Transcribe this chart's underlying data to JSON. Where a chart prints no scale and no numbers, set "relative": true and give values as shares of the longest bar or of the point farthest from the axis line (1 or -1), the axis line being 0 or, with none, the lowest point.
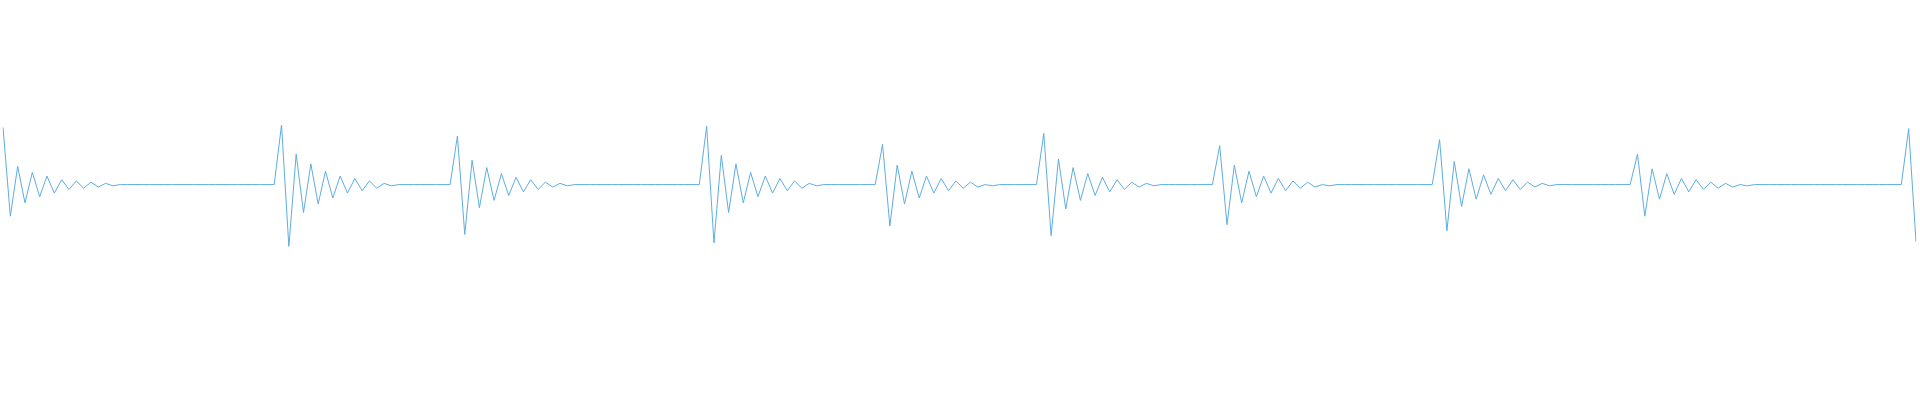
{
  "chart_data": {
    "type": "line",
    "relative": true,
    "categories": [
      null,
      null,
      null,
      null,
      null,
      null,
      null,
      null,
      null,
      null,
      null,
      null,
      null,
      null,
      null,
      null,
      null,
      null,
      null,
      null,
      null,
      null,
      null,
      null,
      null,
      null,
      null,
      null,
      null,
      null,
      null,
      null,
      null,
      null,
      null,
      null,
      null,
      null,
      null,
      null,
      null,
      null,
      null,
      null,
      null,
      null,
      null,
      null,
      null,
      null,
      null,
      null,
      null,
      null,
      null,
      null,
      null,
      null,
      null,
      null,
      null,
      null,
      null,
      null,
      null,
      null,
      null,
      null,
      null,
      null,
      null,
      null,
      null,
      null,
      null,
      null,
      null,
      null,
      null,
      null,
      null,
      null,
      null,
      null,
      null,
      null,
      null,
      null,
      null,
      null,
      null,
      null,
      null,
      null,
      null,
      null,
      null,
      null,
      null,
      null,
      null,
      null,
      null,
      null,
      null,
      null,
      null,
      null,
      null,
      null,
      null,
      null,
      null,
      null,
      null,
      null,
      null,
      null,
      null,
      null,
      null,
      null,
      null,
      null,
      null,
      null,
      null,
      null,
      null,
      null,
      null,
      null,
      null,
      null,
      null,
      null,
      null,
      null,
      null,
      null,
      null,
      null,
      null,
      null,
      null,
      null,
      null,
      null,
      null,
      null,
      null,
      null,
      null,
      null,
      null,
      null,
      null,
      null,
      null,
      null,
      null,
      null,
      null,
      null,
      null,
      null,
      null,
      null,
      null,
      null,
      null,
      null,
      null,
      null,
      null,
      null,
      null,
      null,
      null,
      null,
      null,
      null,
      null,
      null,
      null,
      null,
      null,
      null,
      null,
      null,
      null,
      null,
      null,
      null,
      null,
      null,
      null,
      null,
      null,
      null,
      null,
      null,
      null,
      null,
      null,
      null,
      null,
      null,
      null,
      null,
      null,
      null,
      null,
      null,
      null,
      null,
      null,
      null,
      null,
      null,
      null,
      null,
      null,
      null,
      null,
      null,
      null,
      null,
      null,
      null,
      null,
      null,
      null,
      null,
      null,
      null,
      null,
      null,
      null,
      null,
      null,
      null,
      null,
      null,
      null,
      null,
      null,
      null,
      null,
      null,
      null,
      null,
      null,
      null,
      null,
      null,
      null,
      null,
      null,
      null,
      null,
      null
    ],
    "series": [
      {
        "color": "#5dade2",
        "values": [
          0.98,
          0.25,
          0.66,
          0.36,
          0.61,
          0.41,
          0.58,
          0.44,
          0.55,
          0.47,
          0.54,
          0.48,
          0.53,
          0.49,
          0.52,
          0.5,
          0.51,
          0.51,
          0.51,
          0.51,
          0.51,
          0.51,
          0.51,
          0.51,
          0.51,
          0.51,
          0.51,
          0.51,
          0.51,
          0.51,
          0.51,
          0.51,
          0.51,
          0.51,
          0.51,
          0.51,
          0.51,
          0.51,
          1,
          0,
          0.76,
          0.28,
          0.68,
          0.35,
          0.62,
          0.4,
          0.58,
          0.44,
          0.56,
          0.46,
          0.54,
          0.48,
          0.52,
          0.5,
          0.51,
          0.51,
          0.51,
          0.51,
          0.51,
          0.51,
          0.51,
          0.51,
          0.91,
          0.1,
          0.71,
          0.32,
          0.65,
          0.38,
          0.6,
          0.42,
          0.57,
          0.45,
          0.55,
          0.47,
          0.53,
          0.49,
          0.52,
          0.5,
          0.51,
          0.51,
          0.51,
          0.51,
          0.51,
          0.51,
          0.51,
          0.51,
          0.51,
          0.51,
          0.51,
          0.51,
          0.51,
          0.51,
          0.51,
          0.51,
          0.51,
          0.51,
          0.99,
          0.03,
          0.75,
          0.28,
          0.68,
          0.36,
          0.61,
          0.41,
          0.58,
          0.44,
          0.56,
          0.46,
          0.54,
          0.48,
          0.52,
          0.5,
          0.51,
          0.51,
          0.51,
          0.51,
          0.51,
          0.51,
          0.51,
          0.51,
          0.84,
          0.17,
          0.67,
          0.35,
          0.62,
          0.4,
          0.58,
          0.44,
          0.56,
          0.46,
          0.54,
          0.48,
          0.53,
          0.49,
          0.51,
          0.5,
          0.51,
          0.51,
          0.51,
          0.51,
          0.51,
          0.51,
          0.93,
          0.09,
          0.72,
          0.31,
          0.65,
          0.38,
          0.6,
          0.42,
          0.57,
          0.45,
          0.55,
          0.47,
          0.53,
          0.49,
          0.52,
          0.5,
          0.51,
          0.51,
          0.51,
          0.51,
          0.51,
          0.51,
          0.51,
          0.51,
          0.83,
          0.18,
          0.67,
          0.36,
          0.62,
          0.41,
          0.58,
          0.44,
          0.56,
          0.46,
          0.54,
          0.48,
          0.53,
          0.49,
          0.51,
          0.5,
          0.51,
          0.51,
          0.51,
          0.51,
          0.51,
          0.51,
          0.51,
          0.51,
          0.51,
          0.51,
          0.51,
          0.51,
          0.51,
          0.51,
          0.88,
          0.13,
          0.7,
          0.33,
          0.64,
          0.39,
          0.59,
          0.43,
          0.56,
          0.46,
          0.55,
          0.47,
          0.53,
          0.49,
          0.52,
          0.5,
          0.51,
          0.51,
          0.51,
          0.51,
          0.51,
          0.51,
          0.51,
          0.51,
          0.51,
          0.51,
          0.51,
          0.76,
          0.25,
          0.64,
          0.39,
          0.6,
          0.43,
          0.56,
          0.45,
          0.55,
          0.47,
          0.53,
          0.48,
          0.52,
          0.49,
          0.51,
          0.5,
          0.51,
          0.51,
          0.51,
          0.51,
          0.51,
          0.51,
          0.51,
          0.51,
          0.51,
          0.51,
          0.51,
          0.51,
          0.51,
          0.51,
          0.51,
          0.51,
          0.51,
          0.51,
          0.51,
          0.51,
          0.51,
          0.97,
          0.04
        ]
      }
    ]
  }
}
